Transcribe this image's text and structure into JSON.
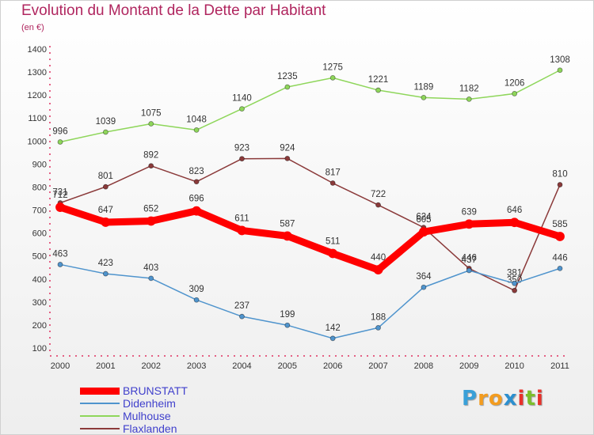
{
  "title": "Evolution du Montant de la Dette par Habitant",
  "subtitle": "(en €)",
  "logo": {
    "letters": [
      "P",
      "r",
      "o",
      "x",
      "i",
      "t",
      "i"
    ],
    "colors": [
      "#3aa0d8",
      "#f39c1f",
      "#f39c1f",
      "#2c8fcf",
      "#e8312a",
      "#7cbf2b",
      "#e8312a"
    ]
  },
  "chart_data": {
    "type": "line",
    "title": "Evolution du Montant de la Dette par Habitant",
    "subtitle": "(en €)",
    "xlabel": "",
    "ylabel": "",
    "x": [
      "2000",
      "2001",
      "2002",
      "2003",
      "2004",
      "2005",
      "2006",
      "2007",
      "2008",
      "2009",
      "2010",
      "2011"
    ],
    "ylim": [
      100,
      1400
    ],
    "yticks": [
      100,
      200,
      300,
      400,
      500,
      600,
      700,
      800,
      900,
      1000,
      1100,
      1200,
      1300,
      1400
    ],
    "grid": false,
    "legend_position": "bottom-left",
    "series": [
      {
        "name": "BRUNSTATT",
        "color": "#ff0000",
        "values": [
          712,
          647,
          652,
          696,
          611,
          587,
          511,
          440,
          605,
          639,
          646,
          585
        ]
      },
      {
        "name": "Didenheim",
        "color": "#4f94cd",
        "values": [
          463,
          423,
          403,
          309,
          237,
          199,
          142,
          188,
          364,
          437,
          381,
          446
        ]
      },
      {
        "name": "Mulhouse",
        "color": "#8ed65a",
        "values": [
          996,
          1039,
          1075,
          1048,
          1140,
          1235,
          1275,
          1221,
          1189,
          1182,
          1206,
          1308
        ]
      },
      {
        "name": "Flaxlanden",
        "color": "#8b3a3a",
        "values": [
          731,
          801,
          892,
          823,
          923,
          924,
          817,
          722,
          624,
          446,
          350,
          810
        ]
      }
    ]
  }
}
